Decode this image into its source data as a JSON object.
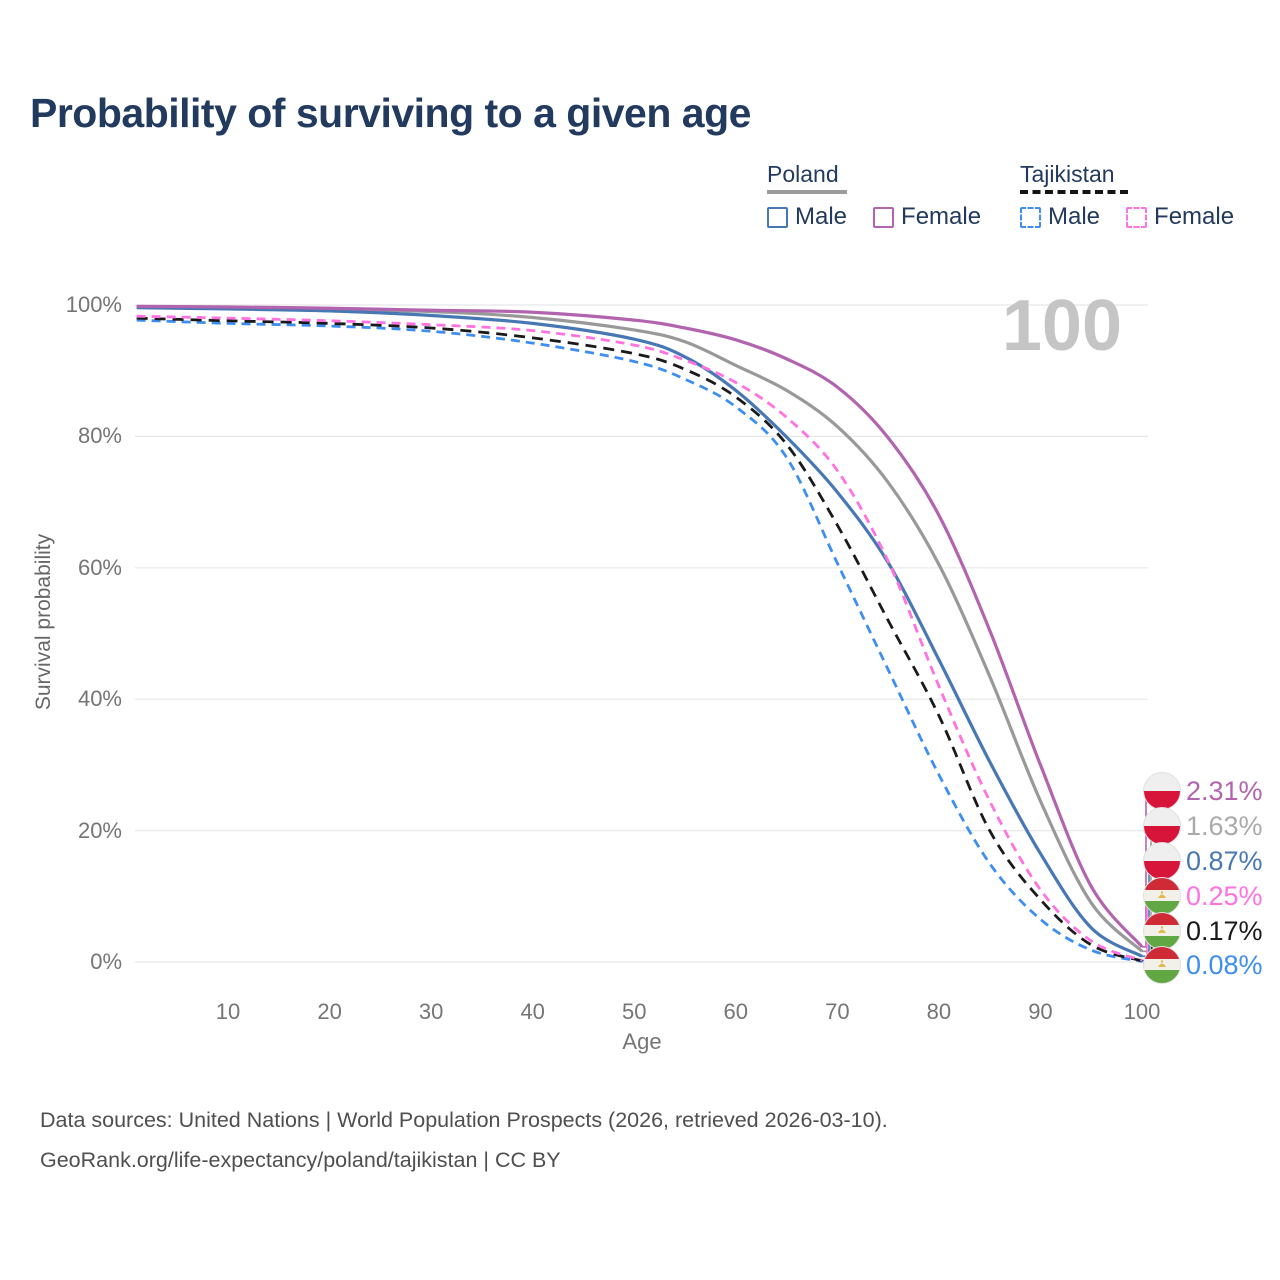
{
  "header": {
    "title": "Probability of surviving to a given age"
  },
  "legend": {
    "poland": {
      "name": "Poland",
      "male": "Male",
      "female": "Female"
    },
    "tajikistan": {
      "name": "Tajikistan",
      "male": "Male",
      "female": "Female"
    }
  },
  "chart_data": {
    "type": "line",
    "title": "Probability of surviving to a given age",
    "xlabel": "Age",
    "ylabel": "Survival probability",
    "watermark": "100",
    "grid": "horizontal",
    "legend_position": "top-right",
    "xlim": [
      1,
      100
    ],
    "ylim": [
      0,
      100
    ],
    "x_ticks": [
      10,
      20,
      30,
      40,
      50,
      60,
      70,
      80,
      90,
      100
    ],
    "y_ticks": [
      0,
      20,
      40,
      60,
      80,
      100
    ],
    "y_tick_suffix": "%",
    "ages": [
      1,
      10,
      20,
      30,
      40,
      50,
      55,
      60,
      65,
      70,
      75,
      80,
      85,
      90,
      95,
      100
    ],
    "series": [
      {
        "name": "Poland Female",
        "country": "Poland",
        "sex": "Female",
        "color": "#b264ae",
        "style": "solid",
        "end_label": "2.31%",
        "values": [
          99.8,
          99.7,
          99.5,
          99.2,
          98.9,
          97.7,
          96.5,
          94.7,
          91.8,
          87.5,
          79.8,
          68.0,
          50.5,
          30.0,
          11.5,
          2.31
        ]
      },
      {
        "name": "Poland Both sexes",
        "country": "Poland",
        "sex": "All",
        "color": "#999999",
        "style": "solid",
        "end_label": "1.63%",
        "values": [
          99.7,
          99.5,
          99.3,
          99.0,
          98.1,
          96.2,
          94.4,
          90.8,
          87.0,
          81.5,
          73.0,
          60.5,
          43.5,
          24.5,
          9.0,
          1.63
        ]
      },
      {
        "name": "Poland Male",
        "country": "Poland",
        "sex": "Male",
        "color": "#4878b4",
        "style": "solid",
        "end_label": "0.87%",
        "values": [
          99.6,
          99.4,
          99.1,
          98.4,
          97.2,
          94.8,
          92.1,
          87.0,
          79.9,
          71.5,
          60.8,
          46.0,
          30.5,
          16.5,
          5.2,
          0.87
        ]
      },
      {
        "name": "Tajikistan Female",
        "country": "Tajikistan",
        "sex": "Female",
        "color": "#ff72e0",
        "style": "dashed",
        "end_label": "0.25%",
        "values": [
          98.3,
          98.0,
          97.6,
          97.0,
          96.1,
          93.9,
          91.6,
          88.2,
          82.9,
          74.8,
          61.0,
          42.0,
          24.5,
          11.0,
          3.2,
          0.25
        ]
      },
      {
        "name": "Tajikistan Both sexes",
        "country": "Tajikistan",
        "sex": "All",
        "color": "#1a1a1a",
        "style": "dashed",
        "end_label": "0.17%",
        "values": [
          98.0,
          97.6,
          97.2,
          96.5,
          95.0,
          92.6,
          90.2,
          86.0,
          78.8,
          66.5,
          52.0,
          37.5,
          20.0,
          9.5,
          2.6,
          0.17
        ]
      },
      {
        "name": "Tajikistan Male",
        "country": "Tajikistan",
        "sex": "Male",
        "color": "#3d8ef0",
        "style": "dashed",
        "end_label": "0.08%",
        "values": [
          97.7,
          97.2,
          96.8,
          96.0,
          94.2,
          91.4,
          88.7,
          84.5,
          76.8,
          60.7,
          44.5,
          28.5,
          15.0,
          6.5,
          1.8,
          0.08
        ]
      }
    ]
  },
  "footer": {
    "line1": "Data sources: United Nations | World Population Prospects (2026, retrieved 2026-03-10).",
    "line2": "GeoRank.org/life-expectancy/poland/tajikistan | CC BY"
  }
}
